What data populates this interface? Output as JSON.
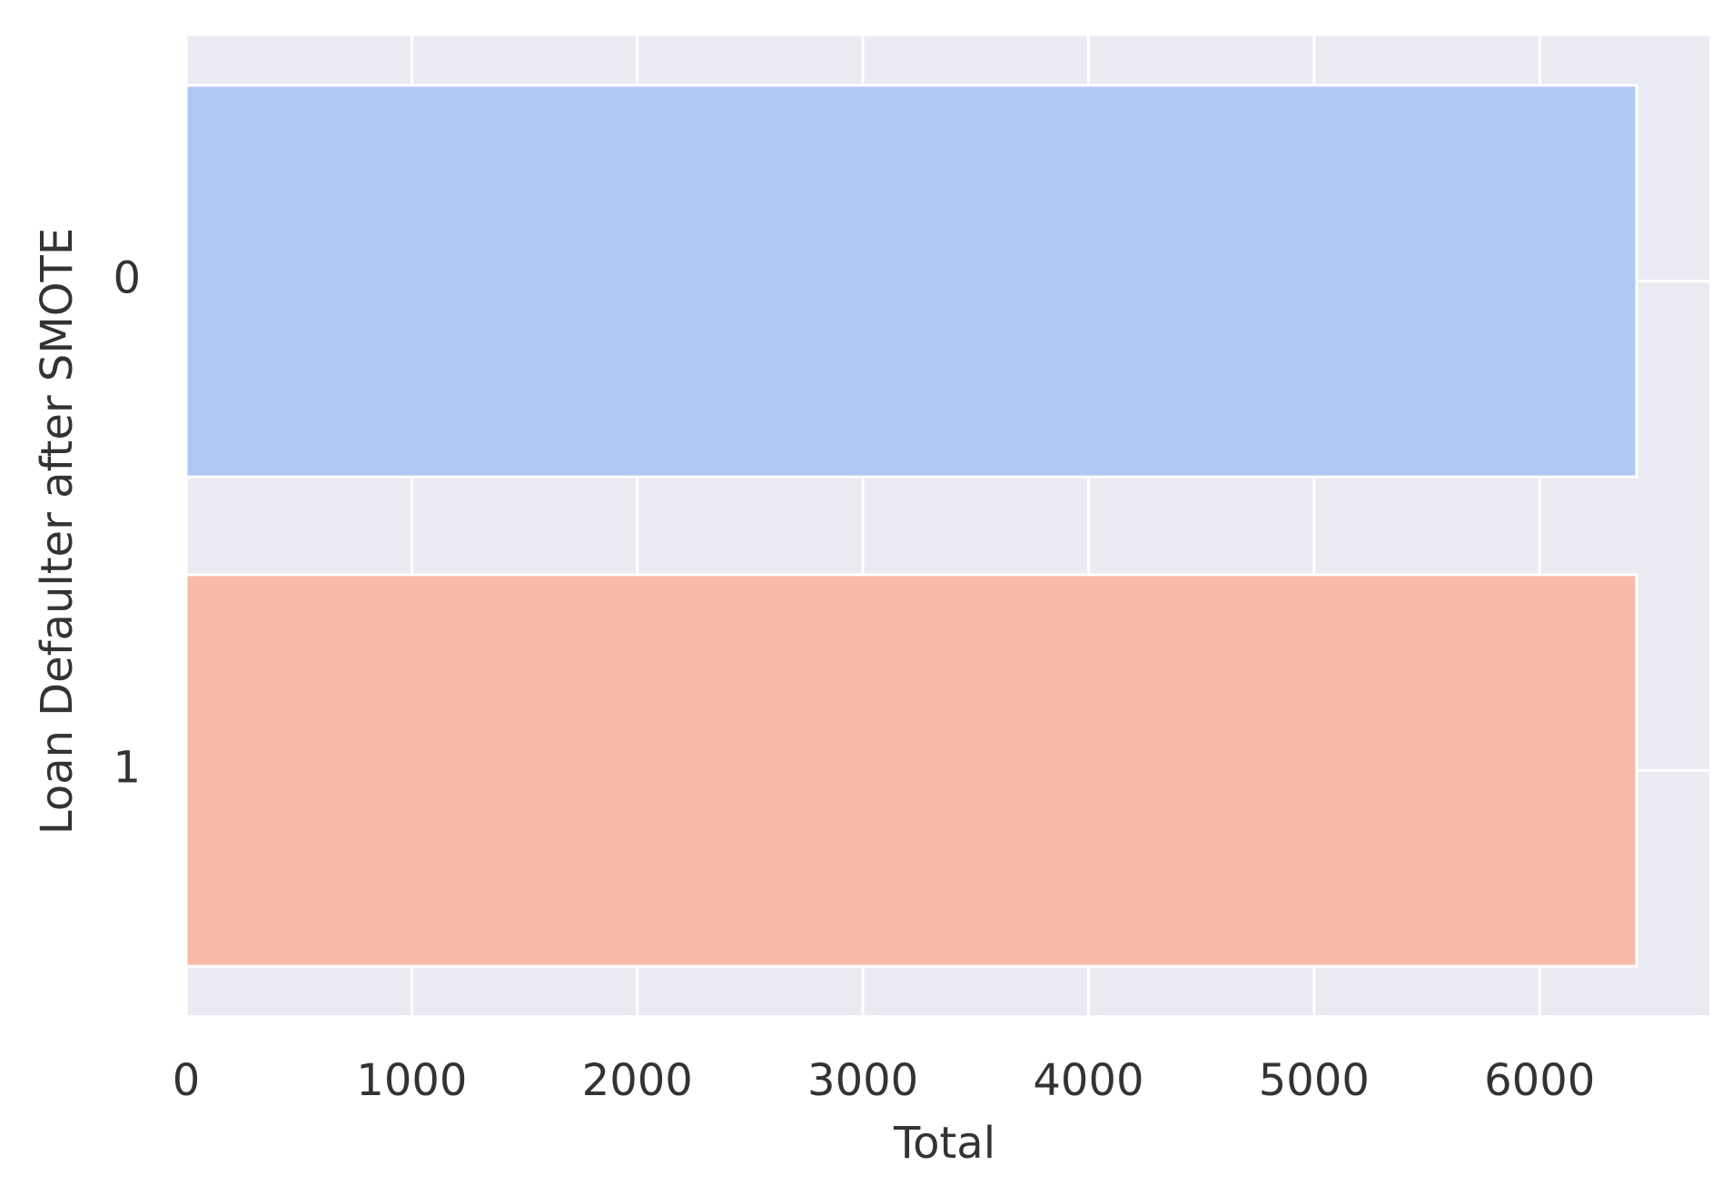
{
  "chart_data": {
    "type": "bar",
    "orientation": "horizontal",
    "categories": [
      "0",
      "1"
    ],
    "values": [
      6430,
      6430
    ],
    "colors": [
      "#aec9f2",
      "#f8baa6"
    ],
    "xlabel": "Total",
    "ylabel": "Loan Defaulter after SMOTE",
    "xlim": [
      0,
      6752
    ],
    "xticks": [
      0,
      1000,
      2000,
      3000,
      4000,
      5000,
      6000
    ],
    "grid": true,
    "background": "#eaeaf2"
  }
}
